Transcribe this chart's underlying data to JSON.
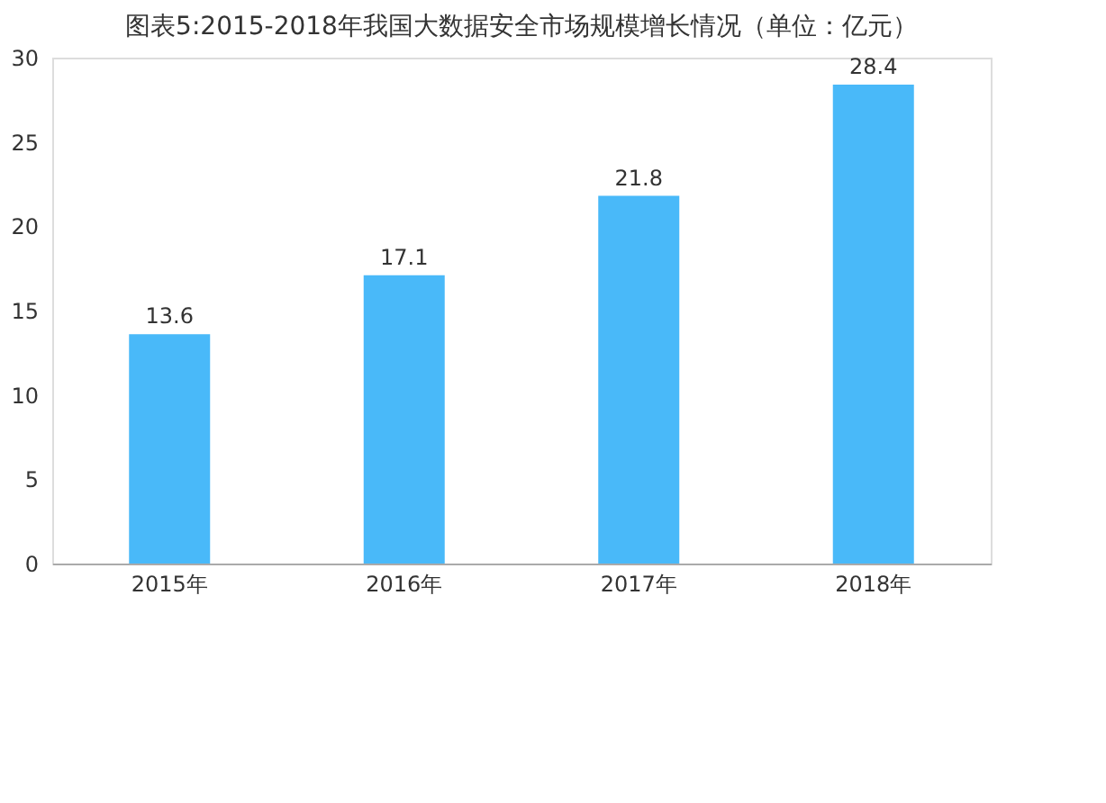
{
  "chart_data": {
    "type": "bar",
    "title": "图表5:2015-2018年我国大数据安全市场规模增长情况（单位：亿元）",
    "categories": [
      "2015年",
      "2016年",
      "2017年",
      "2018年"
    ],
    "values": [
      13.6,
      17.1,
      21.8,
      28.4
    ],
    "color": "#49b9f9",
    "ylim": [
      0,
      30
    ],
    "yticks": [
      0,
      5,
      10,
      15,
      20,
      25,
      30
    ],
    "grid": false,
    "data_labels": true
  }
}
